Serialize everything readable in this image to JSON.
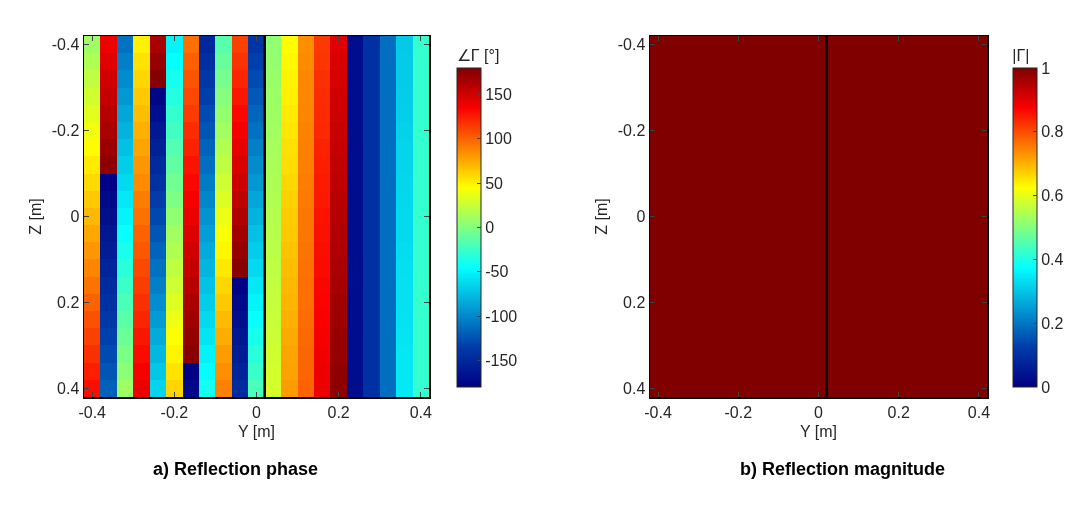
{
  "chart_data": [
    {
      "type": "heatmap",
      "title": "a) Reflection phase",
      "xlabel": "Y [m]",
      "ylabel": "Z [m]",
      "clabel": "∠Γ [°]",
      "x": [
        -0.4,
        -0.36,
        -0.32,
        -0.28,
        -0.24,
        -0.2,
        -0.16,
        -0.12,
        -0.08,
        -0.04,
        0,
        0.04,
        0.08,
        0.12,
        0.16,
        0.2,
        0.24,
        0.28,
        0.32,
        0.36,
        0.4
      ],
      "y": [
        -0.4,
        -0.36,
        -0.32,
        -0.28,
        -0.24,
        -0.2,
        -0.16,
        -0.12,
        -0.08,
        -0.04,
        0,
        0.04,
        0.08,
        0.12,
        0.16,
        0.2,
        0.24,
        0.28,
        0.32,
        0.36,
        0.4
      ],
      "cells": [
        [
          10,
          140,
          -110,
          50,
          165,
          -50,
          96,
          -150,
          -15,
          112,
          -140,
          5,
          45,
          85,
          115,
          145,
          -170,
          -143,
          -112,
          -70,
          -28
        ],
        [
          16,
          145,
          -104,
          55,
          172,
          -45,
          101,
          -145,
          -10,
          117,
          -134,
          6,
          47,
          86,
          116,
          147,
          -170,
          -143,
          -112,
          -69,
          -28
        ],
        [
          22,
          150,
          -98,
          59,
          178,
          -39,
          105,
          -139,
          -5,
          122,
          -128,
          8,
          49,
          87,
          118,
          148,
          -170,
          -143,
          -112,
          -69,
          -28
        ],
        [
          28,
          155,
          -92,
          64,
          -175,
          -34,
          110,
          -134,
          1,
          127,
          -122,
          9,
          50,
          87,
          119,
          150,
          -170,
          -143,
          -112,
          -68,
          -28
        ],
        [
          34,
          160,
          -86,
          68,
          -169,
          -28,
          114,
          -128,
          6,
          132,
          -116,
          10,
          52,
          88,
          120,
          151,
          -170,
          -143,
          -112,
          -67,
          -28
        ],
        [
          40,
          165,
          -80,
          73,
          -162,
          -23,
          119,
          -123,
          11,
          137,
          -110,
          11,
          54,
          89,
          121,
          153,
          -170,
          -143,
          -112,
          -66,
          -28
        ],
        [
          46,
          170,
          -74,
          77,
          -156,
          -17,
          123,
          -117,
          17,
          142,
          -104,
          13,
          56,
          90,
          123,
          154,
          -170,
          -143,
          -112,
          -65,
          -28
        ],
        [
          52,
          175,
          -68,
          82,
          -149,
          -12,
          128,
          -112,
          22,
          147,
          -98,
          14,
          57,
          90,
          124,
          156,
          -170,
          -143,
          -112,
          -65,
          -28
        ],
        [
          58,
          -178,
          -62,
          86,
          -143,
          -6,
          132,
          -106,
          27,
          152,
          -92,
          15,
          59,
          91,
          125,
          157,
          -170,
          -143,
          -112,
          -64,
          -28
        ],
        [
          64,
          -173,
          -56,
          91,
          -136,
          -1,
          137,
          -101,
          32,
          157,
          -86,
          16,
          61,
          92,
          126,
          159,
          -170,
          -143,
          -112,
          -63,
          -28
        ],
        [
          70,
          -168,
          -50,
          95,
          -130,
          5,
          141,
          -95,
          38,
          162,
          -80,
          18,
          63,
          93,
          128,
          160,
          -170,
          -143,
          -112,
          -62,
          -28
        ],
        [
          76,
          -163,
          -44,
          100,
          -123,
          11,
          146,
          -90,
          43,
          167,
          -74,
          19,
          64,
          93,
          129,
          162,
          -170,
          -143,
          -112,
          -62,
          -28
        ],
        [
          82,
          -158,
          -38,
          104,
          -117,
          16,
          150,
          -84,
          48,
          172,
          -68,
          20,
          66,
          94,
          130,
          163,
          -170,
          -143,
          -112,
          -61,
          -28
        ],
        [
          88,
          -153,
          -32,
          109,
          -110,
          22,
          155,
          -79,
          53,
          177,
          -62,
          21,
          68,
          95,
          131,
          165,
          -170,
          -143,
          -112,
          -60,
          -28
        ],
        [
          94,
          -148,
          -26,
          113,
          -104,
          27,
          159,
          -73,
          59,
          -178,
          -56,
          23,
          70,
          96,
          133,
          166,
          -170,
          -143,
          -112,
          -59,
          -28
        ],
        [
          100,
          -143,
          -20,
          118,
          -97,
          33,
          164,
          -68,
          64,
          -173,
          -50,
          24,
          71,
          96,
          134,
          168,
          -170,
          -143,
          -112,
          -59,
          -28
        ],
        [
          106,
          -138,
          -14,
          122,
          -91,
          38,
          168,
          -62,
          69,
          -168,
          -44,
          25,
          73,
          97,
          135,
          169,
          -170,
          -143,
          -112,
          -58,
          -28
        ],
        [
          112,
          -133,
          -8,
          127,
          -84,
          44,
          173,
          -57,
          74,
          -163,
          -38,
          26,
          75,
          98,
          136,
          171,
          -170,
          -143,
          -112,
          -57,
          -28
        ],
        [
          118,
          -128,
          -2,
          131,
          -78,
          49,
          177,
          -51,
          80,
          -158,
          -32,
          28,
          77,
          99,
          138,
          172,
          -170,
          -143,
          -112,
          -56,
          -28
        ],
        [
          124,
          -123,
          4,
          136,
          -71,
          55,
          -179,
          -46,
          85,
          -153,
          -26,
          29,
          78,
          99,
          139,
          174,
          -170,
          -143,
          -112,
          -56,
          -28
        ],
        [
          130,
          -118,
          10,
          140,
          -65,
          60,
          -174,
          -40,
          90,
          -148,
          -20,
          30,
          80,
          100,
          140,
          175,
          -170,
          -143,
          -112,
          -55,
          -28
        ]
      ],
      "clim": [
        -180,
        180
      ],
      "cticks": [
        -150,
        -100,
        -50,
        0,
        50,
        100,
        150
      ],
      "xlim": [
        -0.42,
        0.42
      ],
      "xticks": [
        -0.4,
        -0.2,
        0,
        0.2,
        0.4
      ],
      "ylim": [
        0.42,
        -0.42
      ],
      "yticks": [
        -0.4,
        -0.2,
        0,
        0.2,
        0.4
      ],
      "ref_lines": [
        {
          "axis": "x",
          "value": 0.02,
          "color": "#000000"
        }
      ]
    },
    {
      "type": "heatmap",
      "title": "b) Reflection magnitude",
      "xlabel": "Y [m]",
      "ylabel": "Z [m]",
      "clabel": "|Γ|",
      "x": [
        -0.21,
        0.21
      ],
      "y": [
        -0.21,
        0.21
      ],
      "cells": [
        [
          1,
          1
        ],
        [
          1,
          1
        ]
      ],
      "clim": [
        0,
        1
      ],
      "cticks": [
        0,
        0.2,
        0.4,
        0.6,
        0.8,
        1
      ],
      "xlim": [
        -0.42,
        0.42
      ],
      "xticks": [
        -0.4,
        -0.2,
        0,
        0.2,
        0.4
      ],
      "ylim": [
        0.42,
        -0.42
      ],
      "yticks": [
        -0.4,
        -0.2,
        0,
        0.2,
        0.4
      ],
      "ref_lines": [
        {
          "axis": "x",
          "value": 0.02,
          "color": "#000000"
        }
      ]
    }
  ]
}
